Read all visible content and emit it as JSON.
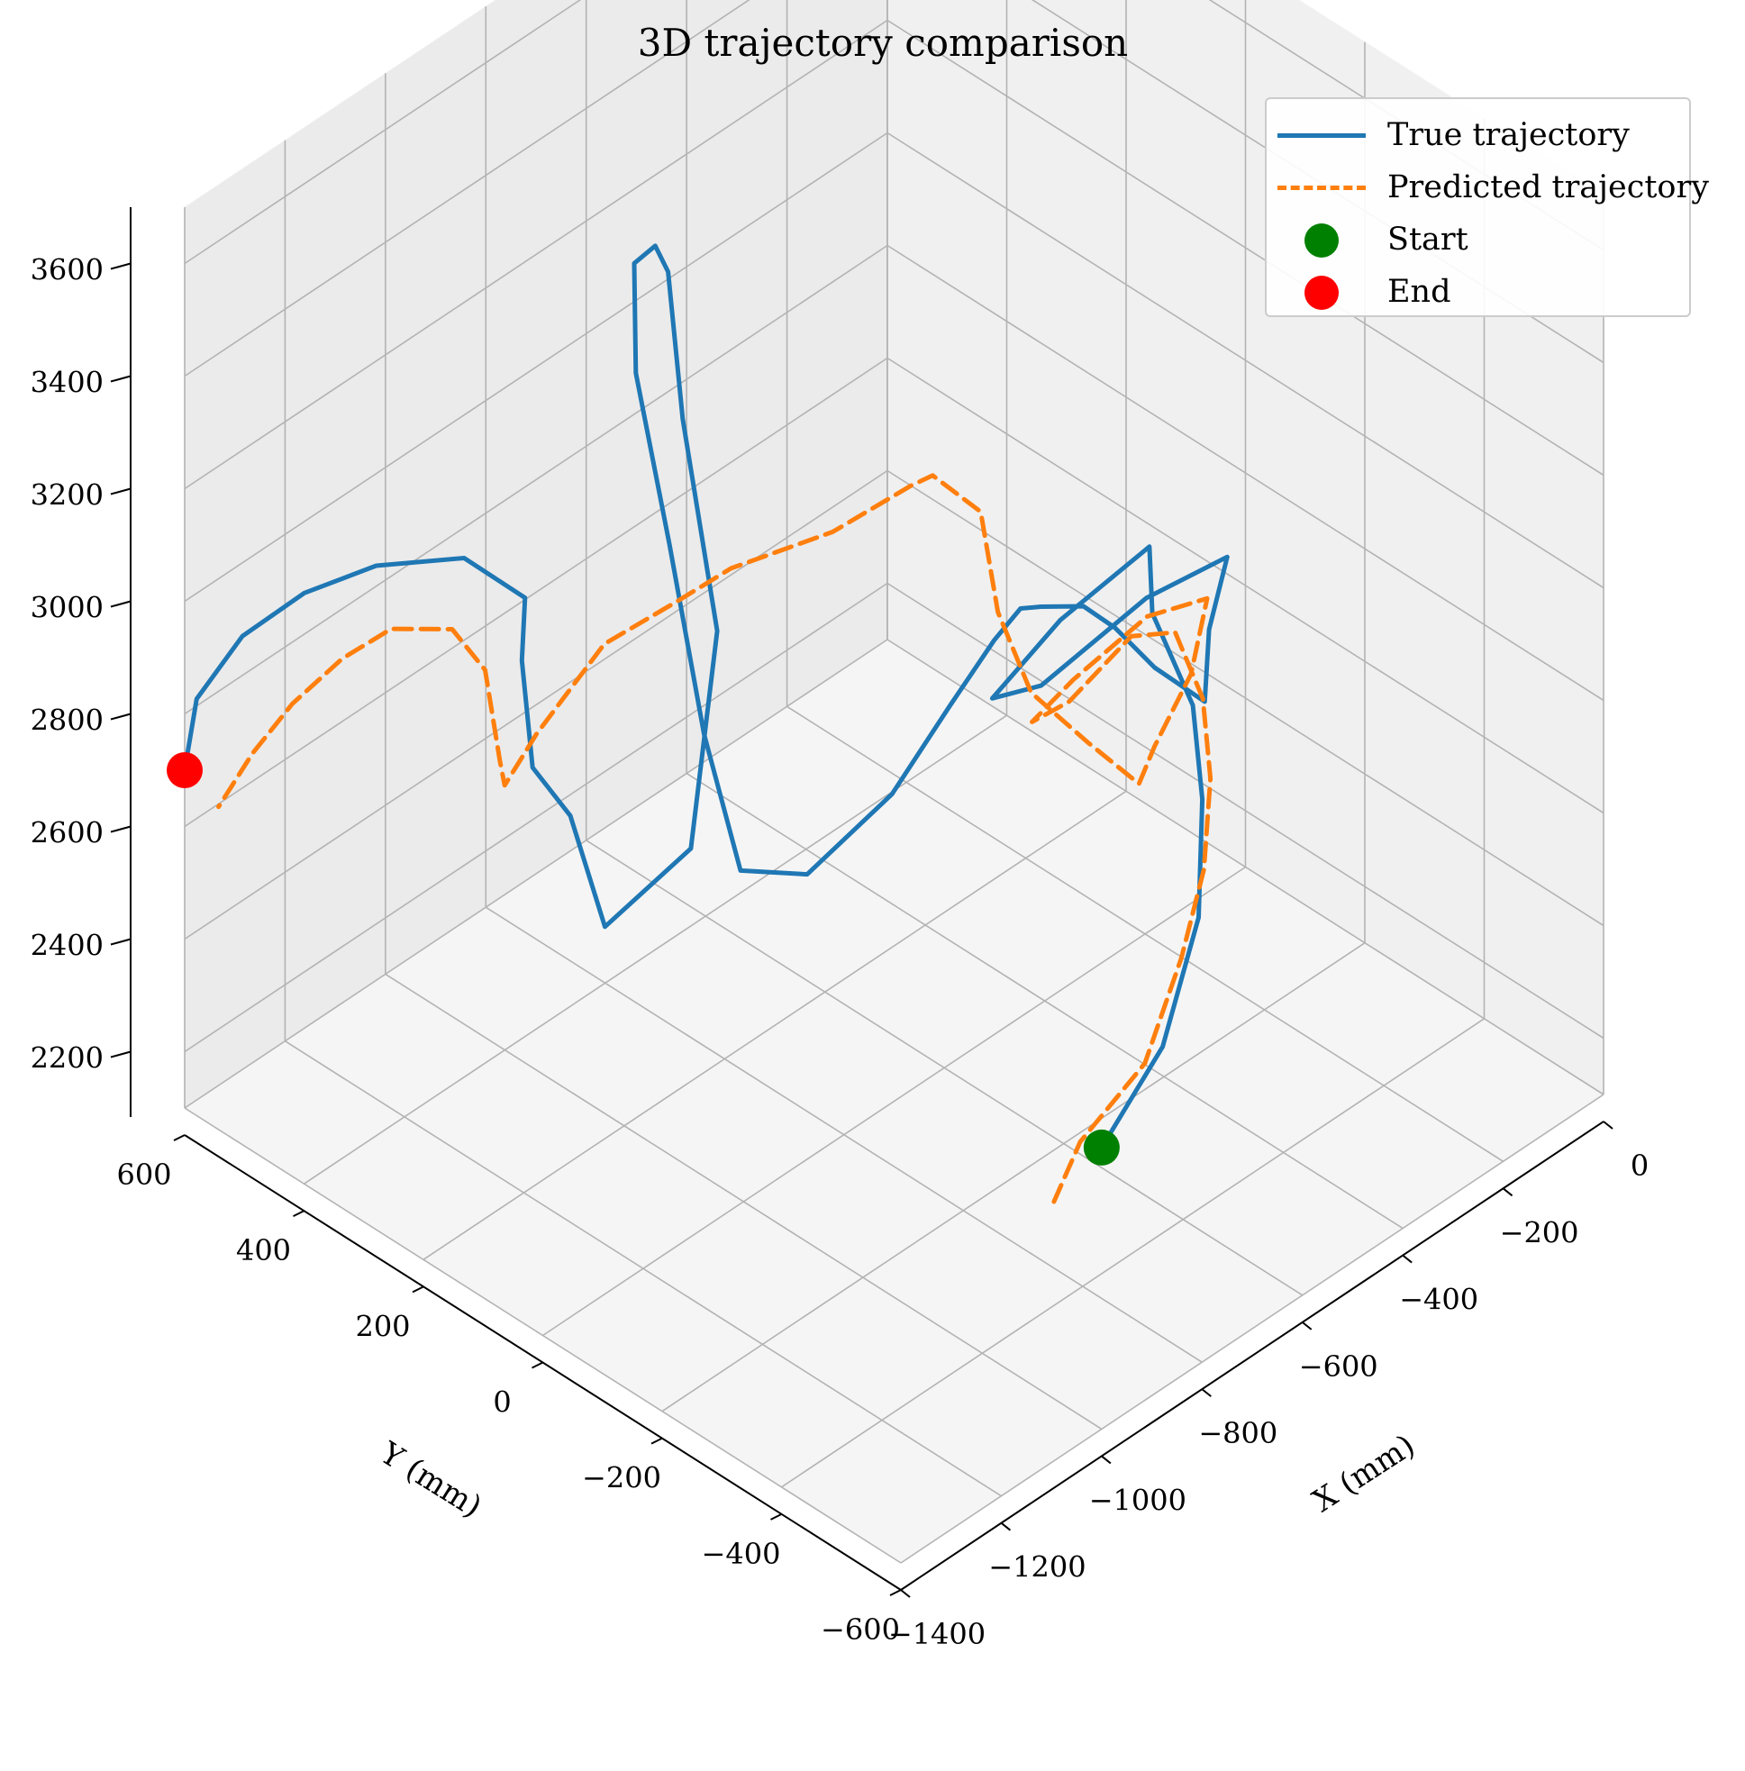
{
  "chart_data": {
    "type": "line",
    "title": "3D trajectory comparison",
    "xlabel": "X (mm)",
    "ylabel": "Y (mm)",
    "zlabel": "",
    "xlim": [
      -1400,
      0
    ],
    "ylim": [
      -600,
      600
    ],
    "zlim": [
      2100,
      3700
    ],
    "x_ticks": [
      "−1400",
      "−1200",
      "−1000",
      "−800",
      "−600",
      "−400",
      "−200",
      "0"
    ],
    "y_ticks": [
      "600",
      "400",
      "200",
      "0",
      "−200",
      "−400",
      "−600"
    ],
    "z_ticks": [
      "2200",
      "2400",
      "2600",
      "2800",
      "3000",
      "3200",
      "3400",
      "3600"
    ],
    "grid": true,
    "legend_position": "top-right",
    "series": [
      {
        "name": "True trajectory",
        "color": "#1f77b4",
        "style": "solid",
        "points": [
          [
            -1000,
            -600,
            2600
          ],
          [
            -700,
            -450,
            2500
          ],
          [
            -450,
            -300,
            2480
          ],
          [
            -300,
            -180,
            2520
          ],
          [
            -200,
            -80,
            2560
          ],
          [
            -150,
            30,
            2620
          ],
          [
            -120,
            60,
            2700
          ],
          [
            -250,
            100,
            2620
          ],
          [
            -350,
            130,
            2520
          ],
          [
            -300,
            90,
            2540
          ],
          [
            -150,
            40,
            2640
          ],
          [
            -60,
            -20,
            2700
          ],
          [
            -120,
            -40,
            2620
          ],
          [
            -200,
            -100,
            2580
          ],
          [
            -300,
            -100,
            2700
          ],
          [
            -450,
            -160,
            2900
          ],
          [
            -620,
            -250,
            3100
          ],
          [
            -800,
            -330,
            3260
          ],
          [
            -900,
            -380,
            3350
          ],
          [
            -1000,
            -420,
            3380
          ],
          [
            -1100,
            -430,
            3330
          ],
          [
            -1180,
            -400,
            3200
          ],
          [
            -1230,
            -300,
            3020
          ],
          [
            -1220,
            -180,
            2940
          ],
          [
            -1150,
            -60,
            3060
          ],
          [
            -1100,
            40,
            3300
          ],
          [
            -1060,
            130,
            3520
          ],
          [
            -980,
            200,
            3620
          ],
          [
            -950,
            190,
            3640
          ],
          [
            -960,
            160,
            3620
          ],
          [
            -1050,
            60,
            3480
          ],
          [
            -1100,
            -40,
            3200
          ],
          [
            -1200,
            -80,
            2900
          ],
          [
            -1300,
            -20,
            2780
          ],
          [
            -1250,
            80,
            2880
          ],
          [
            -1230,
            160,
            2900
          ],
          [
            -1180,
            220,
            3020
          ],
          [
            -1150,
            240,
            3100
          ],
          [
            -1200,
            300,
            3160
          ],
          [
            -1280,
            380,
            3140
          ],
          [
            -1340,
            450,
            3080
          ],
          [
            -1380,
            520,
            2980
          ],
          [
            -1400,
            580,
            2840
          ],
          [
            -1400,
            600,
            2700
          ]
        ]
      },
      {
        "name": "Predicted trajectory",
        "color": "#ff7f0e",
        "style": "dashed",
        "points": [
          [
            -1000,
            -520,
            2450
          ],
          [
            -900,
            -480,
            2470
          ],
          [
            -700,
            -420,
            2450
          ],
          [
            -520,
            -330,
            2470
          ],
          [
            -380,
            -250,
            2490
          ],
          [
            -260,
            -160,
            2520
          ],
          [
            -180,
            -80,
            2560
          ],
          [
            -140,
            0,
            2600
          ],
          [
            -180,
            40,
            2590
          ],
          [
            -280,
            60,
            2520
          ],
          [
            -330,
            80,
            2500
          ],
          [
            -260,
            70,
            2540
          ],
          [
            -160,
            30,
            2620
          ],
          [
            -100,
            -20,
            2650
          ],
          [
            -180,
            -60,
            2590
          ],
          [
            -300,
            -100,
            2560
          ],
          [
            -450,
            -200,
            2650
          ],
          [
            -600,
            -240,
            2840
          ],
          [
            -760,
            -280,
            3050
          ],
          [
            -850,
            -300,
            3260
          ],
          [
            -920,
            -330,
            3500
          ],
          [
            -980,
            -300,
            3580
          ],
          [
            -1000,
            -280,
            3560
          ],
          [
            -1060,
            -200,
            3460
          ],
          [
            -1120,
            -80,
            3350
          ],
          [
            -1180,
            -40,
            3300
          ],
          [
            -1230,
            40,
            3200
          ],
          [
            -1270,
            120,
            3010
          ],
          [
            -1250,
            190,
            2860
          ],
          [
            -1200,
            240,
            2840
          ],
          [
            -1170,
            290,
            2950
          ],
          [
            -1200,
            320,
            3020
          ],
          [
            -1250,
            380,
            3010
          ],
          [
            -1300,
            420,
            2960
          ],
          [
            -1340,
            470,
            2870
          ],
          [
            -1360,
            520,
            2760
          ],
          [
            -1380,
            560,
            2650
          ]
        ]
      },
      {
        "name": "Start",
        "color": "#008000",
        "style": "marker",
        "points": [
          [
            -1000,
            -600,
            2600
          ]
        ]
      },
      {
        "name": "End",
        "color": "#ff0000",
        "style": "marker",
        "points": [
          [
            -1400,
            600,
            2700
          ]
        ]
      }
    ]
  }
}
